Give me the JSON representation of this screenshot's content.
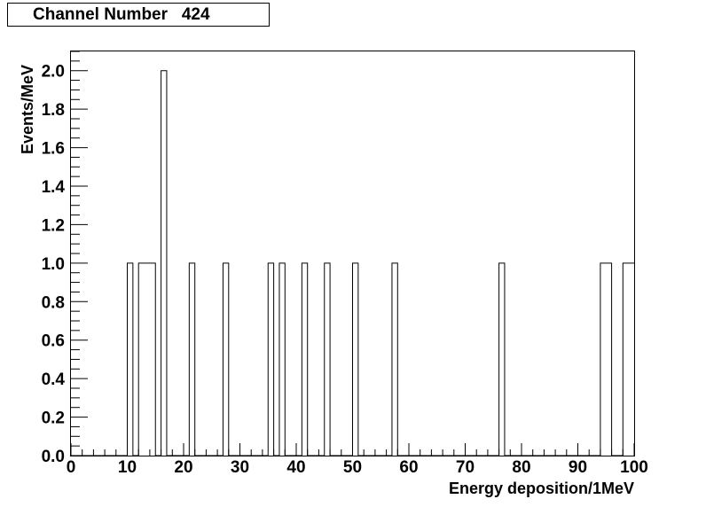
{
  "chart_data": {
    "type": "bar",
    "title": "Channel Number   424",
    "xlabel": "Energy deposition/1MeV",
    "ylabel": "Events/MeV",
    "xlim": [
      0,
      100
    ],
    "ylim": [
      0,
      2.1
    ],
    "bin_width": 1,
    "grid": false,
    "legend": "none",
    "x_ticks": [
      "0",
      "10",
      "20",
      "30",
      "40",
      "50",
      "60",
      "70",
      "80",
      "90",
      "100"
    ],
    "y_ticks": [
      "0.0",
      "0.2",
      "0.4",
      "0.6",
      "0.8",
      "1.0",
      "1.2",
      "1.4",
      "1.6",
      "1.8",
      "2.0"
    ],
    "bins": [
      {
        "x": 10,
        "value": 1
      },
      {
        "x": 12,
        "value": 1
      },
      {
        "x": 13,
        "value": 1
      },
      {
        "x": 14,
        "value": 1
      },
      {
        "x": 16,
        "value": 2
      },
      {
        "x": 21,
        "value": 1
      },
      {
        "x": 27,
        "value": 1
      },
      {
        "x": 35,
        "value": 1
      },
      {
        "x": 37,
        "value": 1
      },
      {
        "x": 41,
        "value": 1
      },
      {
        "x": 45,
        "value": 1
      },
      {
        "x": 50,
        "value": 1
      },
      {
        "x": 57,
        "value": 1
      },
      {
        "x": 76,
        "value": 1
      },
      {
        "x": 94,
        "value": 1
      },
      {
        "x": 95,
        "value": 1
      },
      {
        "x": 98,
        "value": 1
      },
      {
        "x": 99,
        "value": 1
      }
    ]
  }
}
